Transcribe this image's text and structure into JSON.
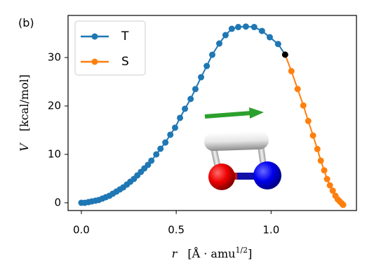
{
  "chart_data": {
    "type": "line",
    "panel_label": "(b)",
    "y_label": [
      "V",
      "[kcal/mol]"
    ],
    "x_label": [
      "r",
      "[Å · amu",
      "1/2",
      "]"
    ],
    "xlim": [
      -0.07,
      1.45
    ],
    "ylim": [
      -1.6,
      38.7
    ],
    "xticks": [
      {
        "value": 0,
        "label": "0.0"
      },
      {
        "value": 0.5,
        "label": "0.5"
      },
      {
        "value": 1,
        "label": "1.0"
      }
    ],
    "yticks": [
      0,
      10,
      20,
      30
    ],
    "legend": "upper left",
    "series": [
      {
        "name": "T",
        "color": "#1f77b4",
        "x": [
          0,
          0.018,
          0.037,
          0.055,
          0.074,
          0.092,
          0.111,
          0.129,
          0.148,
          0.166,
          0.185,
          0.203,
          0.221,
          0.24,
          0.258,
          0.277,
          0.295,
          0.314,
          0.332,
          0.351,
          0.369,
          0.395,
          0.417,
          0.443,
          0.469,
          0.494,
          0.52,
          0.546,
          0.576,
          0.601,
          0.631,
          0.661,
          0.69,
          0.727,
          0.76,
          0.793,
          0.827,
          0.867,
          0.911,
          0.952,
          0.993,
          1.037
        ],
        "values": [
          0,
          0,
          0.14,
          0.29,
          0.43,
          0.58,
          0.87,
          1.16,
          1.45,
          1.88,
          2.32,
          2.75,
          3.19,
          3.77,
          4.35,
          4.93,
          5.65,
          6.38,
          7.1,
          7.83,
          8.7,
          10.0,
          11.16,
          12.46,
          14.06,
          15.51,
          17.54,
          19.42,
          21.45,
          23.48,
          25.94,
          28.26,
          30.58,
          32.9,
          34.64,
          35.94,
          36.3,
          36.4,
          36.3,
          35.5,
          34.2,
          32.8
        ]
      },
      {
        "name": "S",
        "color": "#ff7f0e",
        "x": [
          1.107,
          1.14,
          1.17,
          1.196,
          1.221,
          1.244,
          1.262,
          1.28,
          1.295,
          1.31,
          1.325,
          1.339,
          1.351,
          1.362,
          1.373,
          1.38
        ],
        "values": [
          27.2,
          23.5,
          20.1,
          16.9,
          13.9,
          11.1,
          8.7,
          6.7,
          4.9,
          3.6,
          2.5,
          1.45,
          0.72,
          0.29,
          -0.14,
          -0.43
        ]
      }
    ],
    "junction": {
      "x": 1.074,
      "y": 30.6,
      "color": "#000000"
    }
  }
}
